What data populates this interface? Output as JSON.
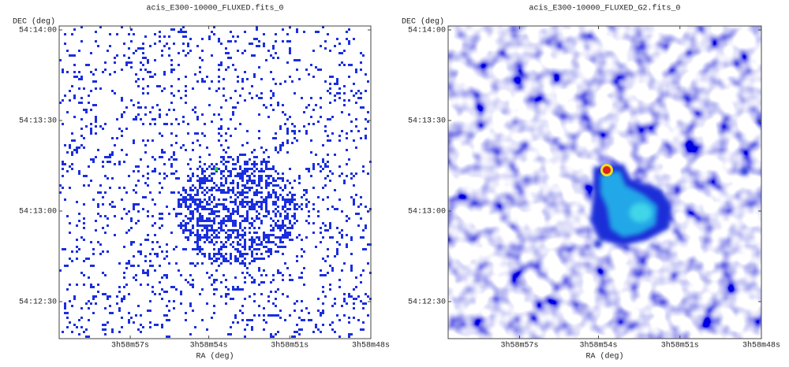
{
  "panels": [
    {
      "title": "acis_E300-10000_FLUXED.fits_0",
      "ylabel": "DEC (deg)",
      "xlabel": "RA (deg)",
      "yticks": [
        "54:14:00",
        "54:13:30",
        "54:13:00",
        "54:12:30"
      ],
      "xticks": [
        "3h58m57s",
        "3h58m54s",
        "3h58m51s",
        "3h58m48s"
      ]
    },
    {
      "title": "acis_E300-10000_FLUXED_G2.fits_0",
      "ylabel": "DEC (deg)",
      "xlabel": "RA (deg)",
      "yticks": [
        "54:14:00",
        "54:13:30",
        "54:13:00",
        "54:12:30"
      ],
      "xticks": [
        "3h58m57s",
        "3h58m54s",
        "3h58m51s",
        "3h58m48s"
      ]
    }
  ]
}
